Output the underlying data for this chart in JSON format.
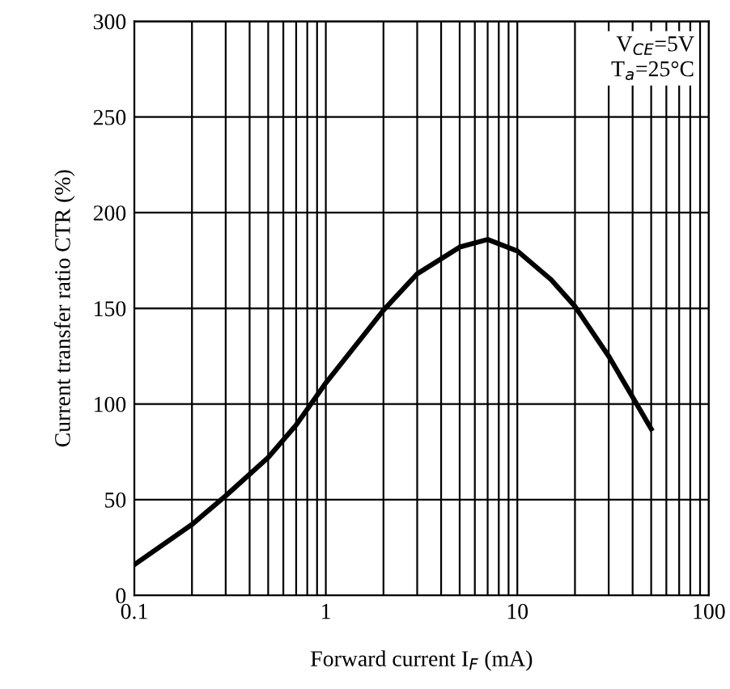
{
  "chart_data": {
    "type": "line",
    "xlabel": "Forward current I$_{F}$ (mA)",
    "ylabel": "Current transfer ratio CTR (%)",
    "annotations": [
      "V$_{CE}$=5V",
      "T$_{a}$=25°C"
    ],
    "x": [
      0.1,
      0.2,
      0.3,
      0.5,
      0.7,
      1,
      2,
      3,
      5,
      7,
      10,
      15,
      20,
      30,
      50
    ],
    "series": [
      {
        "color": "#000000",
        "values": [
          16,
          37,
          52,
          72,
          89,
          111,
          149,
          168,
          182,
          186,
          180,
          165,
          151,
          125,
          87
        ]
      }
    ],
    "log": "x",
    "xlim": [
      0.1,
      100
    ],
    "ylim": [
      0,
      300
    ],
    "xticks": [
      0.1,
      {
        "value": 0.2,
        "label": null
      },
      {
        "value": 0.3,
        "label": null
      },
      {
        "value": 0.4,
        "label": null
      },
      {
        "value": 0.5,
        "label": null
      },
      {
        "value": 0.6,
        "label": null
      },
      {
        "value": 0.7,
        "label": null
      },
      {
        "value": 0.8,
        "label": null
      },
      {
        "value": 0.9,
        "label": null
      },
      1,
      {
        "value": 2,
        "label": null
      },
      {
        "value": 3,
        "label": null
      },
      {
        "value": 4,
        "label": null
      },
      {
        "value": 5,
        "label": null
      },
      {
        "value": 6,
        "label": null
      },
      {
        "value": 7,
        "label": null
      },
      {
        "value": 8,
        "label": null
      },
      {
        "value": 9,
        "label": null
      },
      10,
      {
        "value": 20,
        "label": null
      },
      {
        "value": 30,
        "label": null
      },
      {
        "value": 40,
        "label": null
      },
      {
        "value": 50,
        "label": null
      },
      {
        "value": 60,
        "label": null
      },
      {
        "value": 70,
        "label": null
      },
      {
        "value": 80,
        "label": null
      },
      {
        "value": 90,
        "label": null
      },
      100
    ],
    "yticks": [
      0,
      50,
      100,
      150,
      200,
      250,
      300
    ],
    "grid": true,
    "marker": "none",
    "line_style": "solid"
  }
}
